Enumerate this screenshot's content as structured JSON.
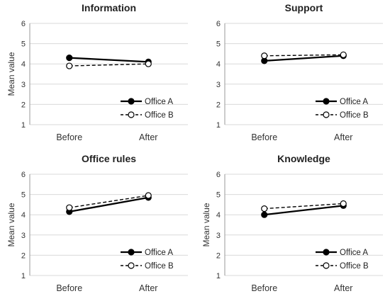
{
  "chart_data": [
    {
      "type": "line",
      "title": "Information",
      "categories": [
        "Before",
        "After"
      ],
      "ylabel": "Mean value",
      "ylim": [
        1,
        6
      ],
      "yticks": [
        1,
        2,
        3,
        4,
        5,
        6
      ],
      "grid": true,
      "legend": "bottom-right",
      "series": [
        {
          "name": "Office A",
          "values": [
            4.3,
            4.1
          ],
          "style": "solid-filled"
        },
        {
          "name": "Office B",
          "values": [
            3.9,
            4.0
          ],
          "style": "dashed-open"
        }
      ]
    },
    {
      "type": "line",
      "title": "Support",
      "categories": [
        "Before",
        "After"
      ],
      "ylabel": "",
      "ylim": [
        1,
        6
      ],
      "yticks": [
        1,
        2,
        3,
        4,
        5,
        6
      ],
      "grid": true,
      "legend": "bottom-right",
      "series": [
        {
          "name": "Office A",
          "values": [
            4.15,
            4.4
          ],
          "style": "solid-filled"
        },
        {
          "name": "Office B",
          "values": [
            4.4,
            4.45
          ],
          "style": "dashed-open"
        }
      ]
    },
    {
      "type": "line",
      "title": "Office rules",
      "categories": [
        "Before",
        "After"
      ],
      "ylabel": "Mean value",
      "ylim": [
        1,
        6
      ],
      "yticks": [
        1,
        2,
        3,
        4,
        5,
        6
      ],
      "grid": true,
      "legend": "bottom-right",
      "series": [
        {
          "name": "Office A",
          "values": [
            4.15,
            4.85
          ],
          "style": "solid-filled"
        },
        {
          "name": "Office B",
          "values": [
            4.35,
            4.95
          ],
          "style": "dashed-open"
        }
      ]
    },
    {
      "type": "line",
      "title": "Knowledge",
      "categories": [
        "Before",
        "After"
      ],
      "ylabel": "Mean value",
      "ylim": [
        1,
        6
      ],
      "yticks": [
        1,
        2,
        3,
        4,
        5,
        6
      ],
      "grid": true,
      "legend": "bottom-right",
      "series": [
        {
          "name": "Office A",
          "values": [
            4.0,
            4.45
          ],
          "style": "solid-filled"
        },
        {
          "name": "Office B",
          "values": [
            4.3,
            4.55
          ],
          "style": "dashed-open"
        }
      ]
    }
  ]
}
